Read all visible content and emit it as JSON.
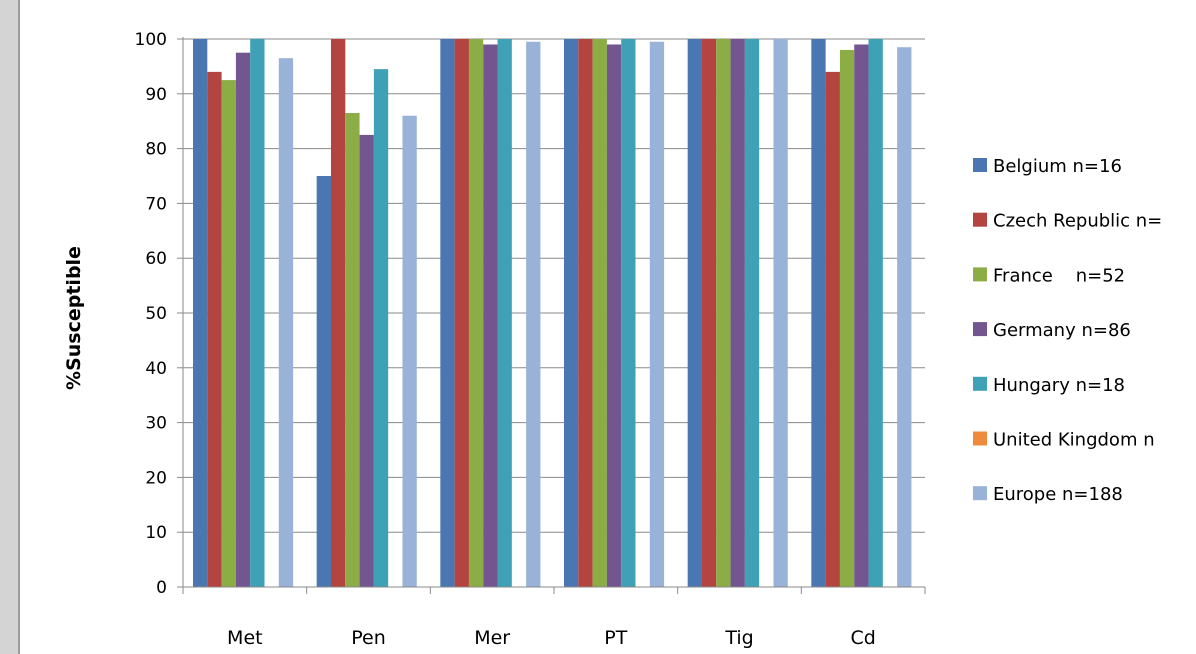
{
  "chart_data": {
    "type": "bar",
    "ylabel": "%Susceptible",
    "xlabel": "",
    "title": "",
    "ylim": [
      0,
      100
    ],
    "yticks": [
      0,
      10,
      20,
      30,
      40,
      50,
      60,
      70,
      80,
      90,
      100
    ],
    "grid": "horizontal",
    "legend_position": "right",
    "categories": [
      "Met",
      "Pen",
      "Mer",
      "PT",
      "Tig",
      "Cd"
    ],
    "series": [
      {
        "name": "Belgium n=16",
        "color": "#4a76b2",
        "values": [
          100,
          75,
          100,
          100,
          100,
          100
        ]
      },
      {
        "name": "Czech Republic n=",
        "color": "#b4443f",
        "values": [
          94,
          100,
          100,
          100,
          100,
          94
        ]
      },
      {
        "name": "France    n=52",
        "color": "#8cad45",
        "values": [
          92.5,
          86.5,
          100,
          100,
          100,
          98
        ]
      },
      {
        "name": "Germany n=86",
        "color": "#73558f",
        "values": [
          97.5,
          82.5,
          99,
          99,
          100,
          99
        ]
      },
      {
        "name": "Hungary n=18",
        "color": "#3ea1b6",
        "values": [
          100,
          94.5,
          100,
          100,
          100,
          100
        ]
      },
      {
        "name": "United Kingdom n",
        "color": "#ee8a3c",
        "values": [
          0,
          0,
          0,
          0,
          0,
          0
        ]
      },
      {
        "name": "Europe n=188",
        "color": "#98b2d8",
        "values": [
          96.5,
          86,
          99.5,
          99.5,
          100,
          98.5
        ]
      }
    ]
  }
}
